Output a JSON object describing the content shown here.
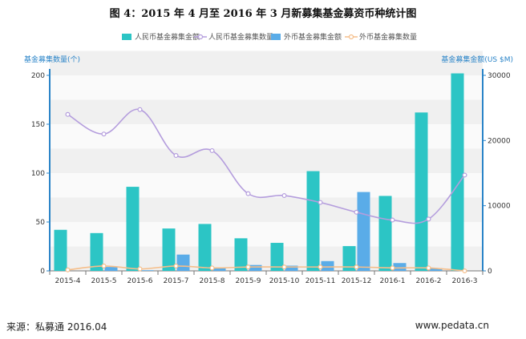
{
  "title": "图 4：2015 年 4 月至 2016 年 3 月新募集基金募资币种统计图",
  "source": "来源：私募通  2016.04",
  "website": "www.pedata.cn",
  "colors": {
    "rmb_amount": "#2cc5c5",
    "rmb_count": "#b49ddd",
    "fx_amount": "#5aace8",
    "fx_count": "#f5be8a",
    "axis": "#2a84c8"
  },
  "chart_data": {
    "type": "bar",
    "categories": [
      "2015-4",
      "2015-5",
      "2015-6",
      "2015-7",
      "2015-8",
      "2015-9",
      "2015-10",
      "2015-11",
      "2015-12",
      "2016-1",
      "2016-2",
      "2016-3"
    ],
    "series": [
      {
        "name": "人民币基金募集金额",
        "kind": "bar",
        "axis": "right",
        "values": [
          6300,
          5800,
          12900,
          6500,
          7200,
          5000,
          4300,
          15300,
          3800,
          11500,
          24300,
          30300
        ]
      },
      {
        "name": "外币基金募集金额",
        "kind": "bar",
        "axis": "right",
        "values": [
          0,
          600,
          100,
          2500,
          400,
          900,
          800,
          1500,
          12100,
          1200,
          400,
          0
        ]
      },
      {
        "name": "人民币基金募集数量",
        "kind": "line",
        "axis": "left",
        "values": [
          160,
          140,
          165,
          118,
          123,
          79,
          77,
          70,
          60,
          52,
          53,
          98
        ]
      },
      {
        "name": "外币基金募集数量",
        "kind": "line",
        "axis": "left",
        "values": [
          1,
          5,
          2,
          5,
          3,
          4,
          4,
          4,
          4,
          3,
          3,
          0
        ]
      }
    ],
    "legend_position": "top",
    "yleft_label": "基金募集数量(个)",
    "yright_label": "基金募集金额(US $M)",
    "yleft_ticks": [
      0,
      50,
      100,
      150,
      200
    ],
    "yright_ticks": [
      0,
      10000,
      20000,
      30000
    ],
    "yleft_lim": [
      0,
      200
    ],
    "yright_lim": [
      0,
      30000
    ]
  }
}
